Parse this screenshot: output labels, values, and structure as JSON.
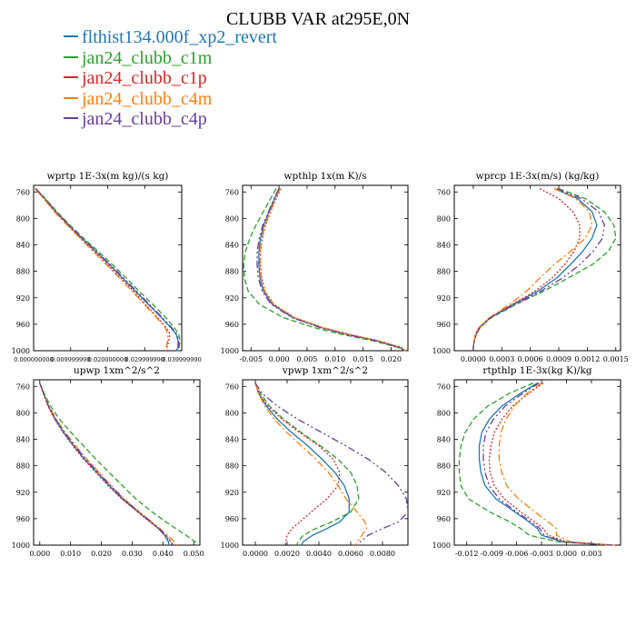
{
  "title": "CLUBB VAR at295E,0N",
  "legend": [
    {
      "label": "flthist134.000f_xp2_revert",
      "color": "#1f77b4"
    },
    {
      "label": "jan24_clubb_c1m",
      "color": "#2ca02c"
    },
    {
      "label": "jan24_clubb_c1p",
      "color": "#d62728"
    },
    {
      "label": "jan24_clubb_c4m",
      "color": "#ff7f0e"
    },
    {
      "label": "jan24_clubb_c4p",
      "color": "#6a3d9a"
    }
  ],
  "chart_data": [
    {
      "type": "line",
      "title": "wprtp 1E-3x(m kg)/(s kg)",
      "ylim": [
        1000,
        750
      ],
      "yticks": [
        "760",
        "800",
        "840",
        "880",
        "920",
        "960",
        "1000"
      ],
      "xlim": [
        0.0,
        0.04
      ],
      "xticks": [
        "0.000000000",
        "0.009999990",
        "0.020000000",
        "0.029999990",
        "0.039999990"
      ],
      "xtick_values": [
        0.0,
        0.01,
        0.02,
        0.03,
        0.04
      ],
      "y": [
        755,
        770,
        790,
        810,
        830,
        850,
        870,
        890,
        910,
        930,
        950,
        965,
        975,
        985,
        995,
        1000
      ],
      "series": [
        {
          "name": "flthist134.000f_xp2_revert",
          "values": [
            0.0005,
            0.003,
            0.006,
            0.0095,
            0.013,
            0.0168,
            0.0205,
            0.024,
            0.0275,
            0.031,
            0.0345,
            0.037,
            0.0385,
            0.039,
            0.039,
            0.0385
          ]
        },
        {
          "name": "jan24_clubb_c1m",
          "values": [
            0.0006,
            0.0032,
            0.0063,
            0.0098,
            0.0135,
            0.0175,
            0.0213,
            0.025,
            0.0285,
            0.0322,
            0.0357,
            0.038,
            0.0392,
            0.0395,
            0.0393,
            0.0388
          ]
        },
        {
          "name": "jan24_clubb_c1p",
          "values": [
            0.0004,
            0.0028,
            0.0058,
            0.0092,
            0.0127,
            0.0164,
            0.02,
            0.0235,
            0.027,
            0.0302,
            0.0335,
            0.0358,
            0.0368,
            0.0365,
            0.036,
            0.036
          ]
        },
        {
          "name": "jan24_clubb_c4m",
          "values": [
            0.0004,
            0.0027,
            0.0056,
            0.009,
            0.0125,
            0.0161,
            0.0197,
            0.0232,
            0.0266,
            0.0299,
            0.0332,
            0.0355,
            0.0363,
            0.0362,
            0.0358,
            0.0358
          ]
        },
        {
          "name": "jan24_clubb_c4p",
          "values": [
            0.0006,
            0.0031,
            0.0061,
            0.0096,
            0.0132,
            0.017,
            0.0207,
            0.0243,
            0.0278,
            0.0313,
            0.0348,
            0.0373,
            0.0387,
            0.0392,
            0.0392,
            0.0386
          ]
        }
      ]
    },
    {
      "type": "line",
      "title": "wpthlp 1x(m K)/s",
      "ylim": [
        1000,
        750
      ],
      "yticks": [
        "760",
        "800",
        "840",
        "880",
        "920",
        "960",
        "1000"
      ],
      "xlim": [
        -0.0065,
        0.023
      ],
      "xticks": [
        "-0.005",
        "0.000",
        "0.005",
        "0.010",
        "0.015",
        "0.020"
      ],
      "xtick_values": [
        -0.005,
        0.0,
        0.005,
        0.01,
        0.015,
        0.02
      ],
      "y": [
        755,
        770,
        790,
        810,
        830,
        850,
        870,
        890,
        910,
        930,
        950,
        965,
        975,
        985,
        995,
        1000
      ],
      "series": [
        {
          "name": "flthist134.000f_xp2_revert",
          "values": [
            0.0,
            -0.0008,
            -0.0018,
            -0.0027,
            -0.0033,
            -0.0036,
            -0.0036,
            -0.0034,
            -0.0028,
            -0.0012,
            0.0025,
            0.0075,
            0.012,
            0.0175,
            0.0215,
            0.0225
          ]
        },
        {
          "name": "jan24_clubb_c1m",
          "values": [
            -0.0005,
            -0.0015,
            -0.0028,
            -0.0041,
            -0.0052,
            -0.006,
            -0.0063,
            -0.0062,
            -0.0055,
            -0.0035,
            0.0008,
            0.0062,
            0.011,
            0.0168,
            0.0212,
            0.0224
          ]
        },
        {
          "name": "jan24_clubb_c1p",
          "values": [
            0.0003,
            -0.0005,
            -0.0015,
            -0.0024,
            -0.003,
            -0.0033,
            -0.0033,
            -0.0031,
            -0.0025,
            -0.0009,
            0.0028,
            0.0078,
            0.0123,
            0.0178,
            0.0218,
            0.0226
          ]
        },
        {
          "name": "jan24_clubb_c4m",
          "values": [
            0.0002,
            -0.0006,
            -0.0016,
            -0.0025,
            -0.0031,
            -0.0034,
            -0.0034,
            -0.0032,
            -0.0026,
            -0.001,
            0.0027,
            0.0077,
            0.0122,
            0.0177,
            0.0217,
            0.0226
          ]
        },
        {
          "name": "jan24_clubb_c4p",
          "values": [
            0.0,
            -0.0009,
            -0.0019,
            -0.0029,
            -0.0035,
            -0.0039,
            -0.0039,
            -0.0037,
            -0.003,
            -0.0014,
            0.0023,
            0.0073,
            0.0118,
            0.0173,
            0.0214,
            0.0225
          ]
        }
      ]
    },
    {
      "type": "line",
      "title": "wprcp 1E-3x(m/s) (kg/kg)",
      "ylim": [
        1000,
        750
      ],
      "yticks": [
        "760",
        "800",
        "840",
        "880",
        "920",
        "960",
        "1000"
      ],
      "xlim": [
        -0.0002,
        0.00155
      ],
      "xticks": [
        "0.0000",
        "0.0003",
        "0.0006",
        "0.0009",
        "0.0012",
        "0.0015"
      ],
      "xtick_values": [
        0.0,
        0.0003,
        0.0006,
        0.0009,
        0.0012,
        0.0015
      ],
      "y": [
        755,
        770,
        790,
        810,
        830,
        850,
        870,
        890,
        910,
        930,
        950,
        965,
        975,
        985,
        995,
        1000
      ],
      "series": [
        {
          "name": "flthist134.000f_xp2_revert",
          "values": [
            0.00085,
            0.0011,
            0.00125,
            0.0013,
            0.00125,
            0.00115,
            0.00102,
            0.00088,
            0.00068,
            0.00042,
            0.00018,
            7e-05,
            3e-05,
            1e-05,
            0.0,
            0.0
          ]
        },
        {
          "name": "jan24_clubb_c1m",
          "values": [
            0.0009,
            0.00118,
            0.00138,
            0.00148,
            0.0015,
            0.00142,
            0.00125,
            0.001,
            0.00074,
            0.00045,
            0.00019,
            7e-05,
            3e-05,
            1e-05,
            0.0,
            0.0
          ]
        },
        {
          "name": "jan24_clubb_c1p",
          "values": [
            0.0007,
            0.0009,
            0.00105,
            0.00112,
            0.00112,
            0.00106,
            0.00096,
            0.00083,
            0.00065,
            0.00041,
            0.00017,
            6e-05,
            2e-05,
            1e-05,
            0.0,
            0.0
          ]
        },
        {
          "name": "jan24_clubb_c4m",
          "values": [
            0.00085,
            0.00108,
            0.00122,
            0.00125,
            0.00118,
            0.00102,
            0.00085,
            0.0007,
            0.00056,
            0.00038,
            0.00017,
            6e-05,
            2e-05,
            1e-05,
            0.0,
            0.0
          ]
        },
        {
          "name": "jan24_clubb_c4p",
          "values": [
            0.00088,
            0.00114,
            0.00132,
            0.00138,
            0.00136,
            0.00126,
            0.00112,
            0.00094,
            0.00071,
            0.00044,
            0.00018,
            7e-05,
            3e-05,
            1e-05,
            0.0,
            0.0
          ]
        }
      ]
    },
    {
      "type": "line",
      "title": "upwp 1xm^2/s^2",
      "ylim": [
        1000,
        750
      ],
      "yticks": [
        "760",
        "800",
        "840",
        "880",
        "920",
        "960",
        "1000"
      ],
      "xlim": [
        -0.002,
        0.052
      ],
      "xticks": [
        "0.000",
        "0.010",
        "0.020",
        "0.030",
        "0.040",
        "0.050"
      ],
      "xtick_values": [
        0.0,
        0.01,
        0.02,
        0.03,
        0.04,
        0.05
      ],
      "y": [
        755,
        770,
        790,
        810,
        830,
        850,
        870,
        890,
        910,
        930,
        950,
        965,
        975,
        985,
        995,
        1000
      ],
      "series": [
        {
          "name": "flthist134.000f_xp2_revert",
          "values": [
            0.0,
            0.0012,
            0.0028,
            0.005,
            0.0078,
            0.011,
            0.0145,
            0.0185,
            0.0225,
            0.0268,
            0.032,
            0.036,
            0.0385,
            0.0405,
            0.0418,
            0.042
          ]
        },
        {
          "name": "jan24_clubb_c1m",
          "values": [
            0.0,
            0.0014,
            0.0035,
            0.0065,
            0.0102,
            0.0142,
            0.0182,
            0.0225,
            0.0268,
            0.0312,
            0.0365,
            0.041,
            0.0442,
            0.0475,
            0.0505,
            0.0515
          ]
        },
        {
          "name": "jan24_clubb_c1p",
          "values": [
            0.0,
            0.0011,
            0.0027,
            0.0049,
            0.0076,
            0.0108,
            0.0142,
            0.0182,
            0.0222,
            0.0266,
            0.0318,
            0.0358,
            0.0385,
            0.0408,
            0.0425,
            0.043
          ]
        },
        {
          "name": "jan24_clubb_c4m",
          "values": [
            0.0,
            0.0012,
            0.003,
            0.0054,
            0.0083,
            0.0117,
            0.0153,
            0.0192,
            0.0232,
            0.0274,
            0.0324,
            0.0364,
            0.039,
            0.0415,
            0.0438,
            0.0445
          ]
        },
        {
          "name": "jan24_clubb_c4p",
          "values": [
            0.0,
            0.0012,
            0.0029,
            0.0052,
            0.0081,
            0.0114,
            0.015,
            0.019,
            0.023,
            0.0272,
            0.0322,
            0.0362,
            0.0388,
            0.041,
            0.0428,
            0.0432
          ]
        }
      ]
    },
    {
      "type": "line",
      "title": "vpwp 1xm^2/s^2",
      "ylim": [
        1000,
        750
      ],
      "yticks": [
        "760",
        "800",
        "840",
        "880",
        "920",
        "960",
        "1000"
      ],
      "xlim": [
        -0.0008,
        0.0096
      ],
      "xticks": [
        "0.0000",
        "0.0020",
        "0.0040",
        "0.0060",
        "0.0080"
      ],
      "xtick_values": [
        0.0,
        0.002,
        0.004,
        0.006,
        0.008
      ],
      "y": [
        755,
        770,
        790,
        810,
        830,
        850,
        870,
        890,
        910,
        930,
        950,
        965,
        975,
        985,
        995,
        1000
      ],
      "series": [
        {
          "name": "flthist134.000f_xp2_revert",
          "values": [
            0.0,
            0.0002,
            0.0007,
            0.0014,
            0.0023,
            0.0033,
            0.0042,
            0.005,
            0.0056,
            0.0059,
            0.0059,
            0.0053,
            0.0045,
            0.0036,
            0.003,
            0.0029
          ]
        },
        {
          "name": "jan24_clubb_c1m",
          "values": [
            0.0,
            0.0003,
            0.0009,
            0.0018,
            0.0029,
            0.0041,
            0.0052,
            0.006,
            0.0064,
            0.0065,
            0.006,
            0.0048,
            0.0038,
            0.003,
            0.0027,
            0.0026
          ]
        },
        {
          "name": "jan24_clubb_c1p",
          "values": [
            0.0,
            0.0002,
            0.0008,
            0.0017,
            0.0028,
            0.004,
            0.0049,
            0.0053,
            0.0052,
            0.0045,
            0.0035,
            0.0028,
            0.0023,
            0.002,
            0.0019,
            0.0019
          ]
        },
        {
          "name": "jan24_clubb_c4m",
          "values": [
            0.0,
            0.0002,
            0.0006,
            0.0012,
            0.002,
            0.0029,
            0.0038,
            0.0046,
            0.0052,
            0.0057,
            0.0064,
            0.0069,
            0.007,
            0.0067,
            0.0064,
            0.0063
          ]
        },
        {
          "name": "jan24_clubb_c4p",
          "values": [
            0.0,
            0.0004,
            0.0014,
            0.0027,
            0.0042,
            0.0057,
            0.0071,
            0.0082,
            0.009,
            0.0095,
            0.0096,
            0.009,
            0.008,
            0.0071,
            0.0066,
            0.0065
          ]
        }
      ]
    },
    {
      "type": "line",
      "title": "rtpthlp 1E-3x(kg K)/kg",
      "ylim": [
        1000,
        750
      ],
      "yticks": [
        "760",
        "800",
        "840",
        "880",
        "920",
        "960",
        "1000"
      ],
      "xlim": [
        -0.0135,
        0.0065
      ],
      "xticks": [
        "-0.012",
        "-0.009",
        "-0.006",
        "-0.003",
        "0.000",
        "0.003"
      ],
      "xtick_values": [
        -0.012,
        -0.009,
        -0.006,
        -0.003,
        0.0,
        0.003
      ],
      "y": [
        755,
        770,
        790,
        810,
        830,
        850,
        870,
        890,
        910,
        930,
        950,
        965,
        975,
        985,
        995,
        1000
      ],
      "series": [
        {
          "name": "flthist134.000f_xp2_revert",
          "values": [
            -0.0035,
            -0.0055,
            -0.0078,
            -0.0093,
            -0.0102,
            -0.0105,
            -0.0105,
            -0.0103,
            -0.0098,
            -0.0085,
            -0.0062,
            -0.0045,
            -0.0035,
            -0.003,
            -0.0005,
            0.0055
          ]
        },
        {
          "name": "jan24_clubb_c1m",
          "values": [
            -0.004,
            -0.0068,
            -0.0095,
            -0.0112,
            -0.0122,
            -0.0127,
            -0.0129,
            -0.0129,
            -0.0127,
            -0.0118,
            -0.0092,
            -0.0068,
            -0.0055,
            -0.0045,
            -0.001,
            0.0052
          ]
        },
        {
          "name": "jan24_clubb_c1p",
          "values": [
            -0.0028,
            -0.0045,
            -0.0065,
            -0.0078,
            -0.0087,
            -0.0091,
            -0.0093,
            -0.0092,
            -0.0087,
            -0.0075,
            -0.0055,
            -0.0038,
            -0.0028,
            -0.0022,
            0.0,
            0.0056
          ]
        },
        {
          "name": "jan24_clubb_c4m",
          "values": [
            -0.003,
            -0.0047,
            -0.0063,
            -0.0073,
            -0.0079,
            -0.0081,
            -0.0081,
            -0.0078,
            -0.0072,
            -0.0058,
            -0.0038,
            -0.0022,
            -0.0012,
            -0.0012,
            0.0005,
            0.0058
          ]
        },
        {
          "name": "jan24_clubb_c4p",
          "values": [
            -0.0033,
            -0.0052,
            -0.0074,
            -0.0088,
            -0.0097,
            -0.01,
            -0.01,
            -0.0098,
            -0.0093,
            -0.0081,
            -0.006,
            -0.0042,
            -0.0032,
            -0.0027,
            -0.0003,
            0.0055
          ]
        }
      ]
    }
  ]
}
